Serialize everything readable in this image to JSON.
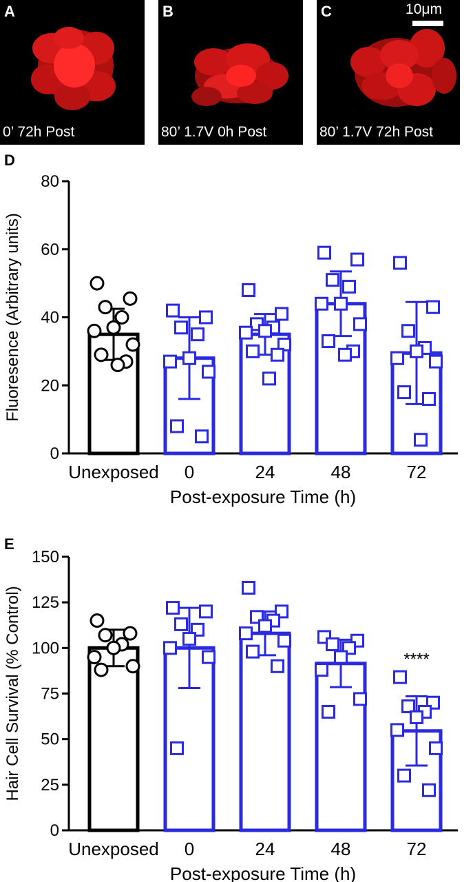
{
  "panels": [
    {
      "letter": "A",
      "caption": "0’ 72h Post"
    },
    {
      "letter": "B",
      "caption": "80’ 1.7V 0h Post"
    },
    {
      "letter": "C",
      "caption": "80’ 1.7V 72h Post"
    }
  ],
  "scale_bar": "10μm",
  "colors": {
    "black": "#000000",
    "blue": "#2a2ae0",
    "fluor": "#ff1a1a"
  },
  "chart_data": [
    {
      "panel": "D",
      "type": "bar",
      "categories": [
        "Unexposed",
        "0",
        "24",
        "48",
        "72"
      ],
      "xlabel": "Post-exposure Time (h)",
      "ylabel": "Fluoresence (Arbitrary units)",
      "ylim": [
        0,
        80
      ],
      "yticks": [
        0,
        20,
        40,
        60,
        80
      ],
      "grid": false,
      "bar_colors": [
        "#000000",
        "#2a2ae0",
        "#2a2ae0",
        "#2a2ae0",
        "#2a2ae0"
      ],
      "means": [
        35,
        28,
        35,
        44,
        29.5
      ],
      "sd": [
        7.5,
        12,
        6,
        9.5,
        15
      ],
      "points": [
        [
          50,
          45.5,
          43,
          40,
          37,
          36,
          32,
          29,
          27,
          26
        ],
        [
          42,
          40,
          37,
          35,
          28,
          27,
          24,
          8,
          5
        ],
        [
          48,
          41,
          38,
          37,
          36,
          35.5,
          32,
          30,
          29,
          22
        ],
        [
          59,
          57,
          51,
          49,
          44,
          44,
          38,
          33,
          30,
          29
        ],
        [
          56,
          43,
          36,
          31,
          30,
          28,
          27,
          18,
          16,
          4
        ]
      ],
      "annotations": []
    },
    {
      "panel": "E",
      "type": "bar",
      "categories": [
        "Unexposed",
        "0",
        "24",
        "48",
        "72"
      ],
      "xlabel": "Post-exposure Time (h)",
      "ylabel": "Hair Cell Survival (% Control)",
      "ylim": [
        0,
        150
      ],
      "yticks": [
        0,
        25,
        50,
        75,
        100,
        125,
        150
      ],
      "grid": false,
      "bar_colors": [
        "#000000",
        "#2a2ae0",
        "#2a2ae0",
        "#2a2ae0",
        "#2a2ae0"
      ],
      "means": [
        100,
        100,
        108,
        91.5,
        54.5
      ],
      "sd": [
        10,
        22,
        12,
        13,
        19
      ],
      "points": [
        [
          115,
          108,
          107,
          102,
          100,
          95,
          90,
          88
        ],
        [
          122,
          120,
          113,
          110,
          105,
          100,
          95,
          45
        ],
        [
          133,
          120,
          117,
          115,
          112,
          108,
          104,
          98,
          90
        ],
        [
          106,
          104,
          102,
          100,
          95,
          88,
          72,
          65
        ],
        [
          84,
          70,
          68,
          65,
          62,
          55,
          45,
          30,
          22
        ]
      ],
      "annotations": [
        {
          "category": "72",
          "text": "****"
        }
      ]
    }
  ]
}
